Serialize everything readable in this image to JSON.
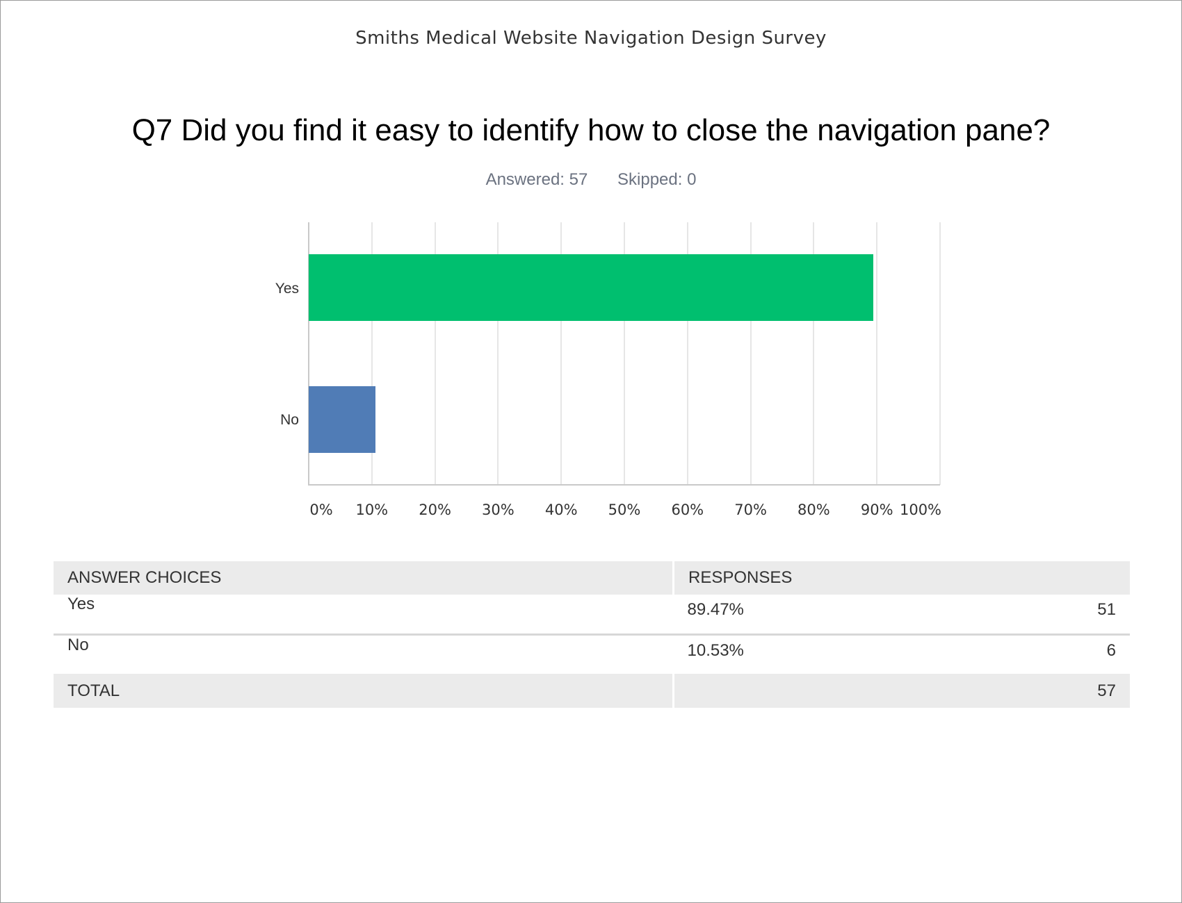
{
  "survey_title": "Smiths Medical Website Navigation Design Survey",
  "question": {
    "title": "Q7 Did you find it easy to identify how to close the navigation pane?",
    "answered_label": "Answered: 57",
    "skipped_label": "Skipped: 0"
  },
  "colors": {
    "yes": "#00BF6F",
    "no": "#507CB6",
    "grid": "#e6e6e6",
    "header_bg": "#ebebeb"
  },
  "chart_data": {
    "type": "bar",
    "orientation": "horizontal",
    "title": "Q7 Did you find it easy to identify how to close the navigation pane?",
    "categories": [
      "Yes",
      "No"
    ],
    "values": [
      89.47,
      10.53
    ],
    "xlabel": "",
    "ylabel": "",
    "xlim": [
      0,
      100
    ],
    "x_ticks": [
      "0%",
      "10%",
      "20%",
      "30%",
      "40%",
      "50%",
      "60%",
      "70%",
      "80%",
      "90%",
      "100%"
    ],
    "grid": true,
    "legend": "none",
    "bar_colors": [
      "#00BF6F",
      "#507CB6"
    ]
  },
  "table": {
    "headers": [
      "ANSWER CHOICES",
      "RESPONSES"
    ],
    "rows": [
      {
        "choice": "Yes",
        "percent": "89.47%",
        "count": "51"
      },
      {
        "choice": "No",
        "percent": "10.53%",
        "count": "6"
      }
    ],
    "total": {
      "label": "TOTAL",
      "count": "57"
    }
  }
}
